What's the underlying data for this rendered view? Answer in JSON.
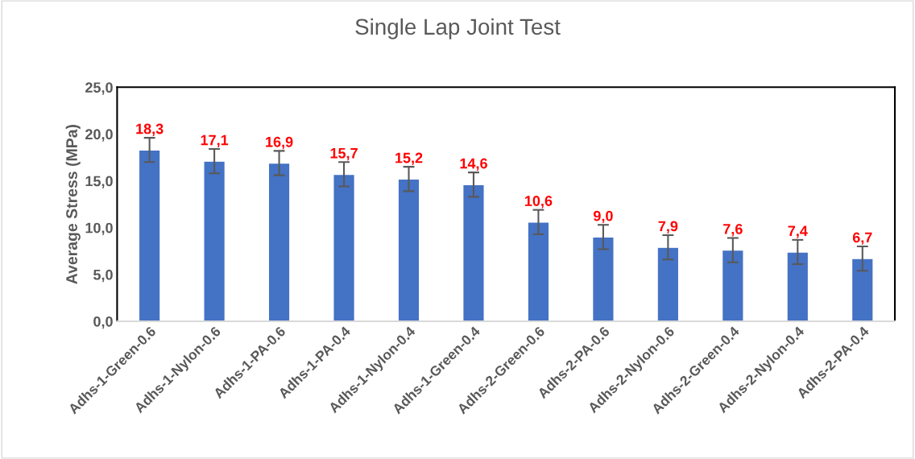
{
  "chart_data": {
    "type": "bar",
    "title": "Single Lap Joint Test",
    "ylabel": "Average Stress (MPa)",
    "categories": [
      "Adhs-1-Green-0.6",
      "Adhs-1-Nylon-0.6",
      "Adhs-1-PA-0.6",
      "Adhs-1-PA-0.4",
      "Adhs-1-Nylon-0.4",
      "Adhs-1-Green-0.4",
      "Adhs-2-Green-0.6",
      "Adhs-2-PA-0.6",
      "Adhs-2-Nylon-0.6",
      "Adhs-2-Green-0.4",
      "Adhs-2-Nylon-0.4",
      "Adhs-2-PA-0.4"
    ],
    "values": [
      18.3,
      17.1,
      16.9,
      15.7,
      15.2,
      14.6,
      10.6,
      9.0,
      7.9,
      7.6,
      7.4,
      6.7
    ],
    "errors": [
      1.3,
      1.3,
      1.3,
      1.3,
      1.3,
      1.3,
      1.3,
      1.3,
      1.3,
      1.3,
      1.3,
      1.3
    ],
    "value_labels": [
      "18,3",
      "17,1",
      "16,9",
      "15,7",
      "15,2",
      "14,6",
      "10,6",
      "9,0",
      "7,9",
      "7,6",
      "7,4",
      "6,7"
    ],
    "color": "#4472c4",
    "ylim": [
      0,
      25
    ],
    "yticks": [
      {
        "value": 0,
        "label": "0,0"
      },
      {
        "value": 5,
        "label": "5,0"
      },
      {
        "value": 10,
        "label": "10,0"
      },
      {
        "value": 15,
        "label": "15,0"
      },
      {
        "value": 20,
        "label": "20,0"
      },
      {
        "value": 25,
        "label": "25,0"
      }
    ],
    "grid": false,
    "legend": false
  }
}
